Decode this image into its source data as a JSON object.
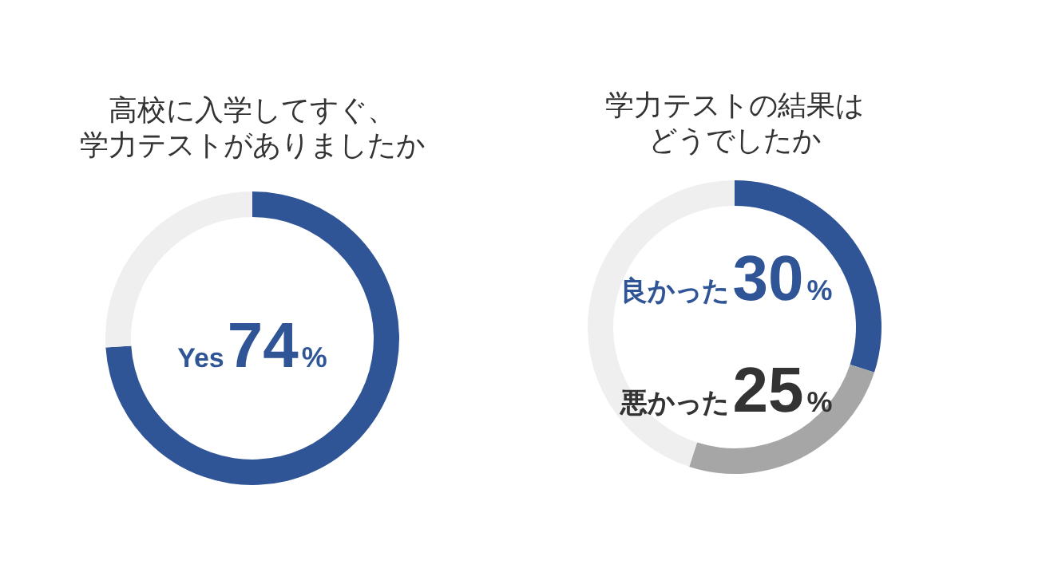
{
  "chart_data": [
    {
      "type": "donut",
      "title": [
        "高校に入学してすぐ、",
        "学力テストがありましたか"
      ],
      "categories": [
        "Yes",
        null
      ],
      "values": [
        74,
        26
      ],
      "colors": [
        "#2f5597",
        "#efefef"
      ],
      "value_labels": [
        "74%",
        null
      ]
    },
    {
      "type": "donut",
      "title": [
        "学力テストの結果は",
        "どうでしたか"
      ],
      "categories": [
        "良かった",
        "悪かった",
        null
      ],
      "values": [
        30,
        25,
        45
      ],
      "colors": [
        "#2f5597",
        "#a6a6a6",
        "#efefef"
      ],
      "value_labels": [
        "30%",
        "25%",
        null
      ]
    }
  ]
}
